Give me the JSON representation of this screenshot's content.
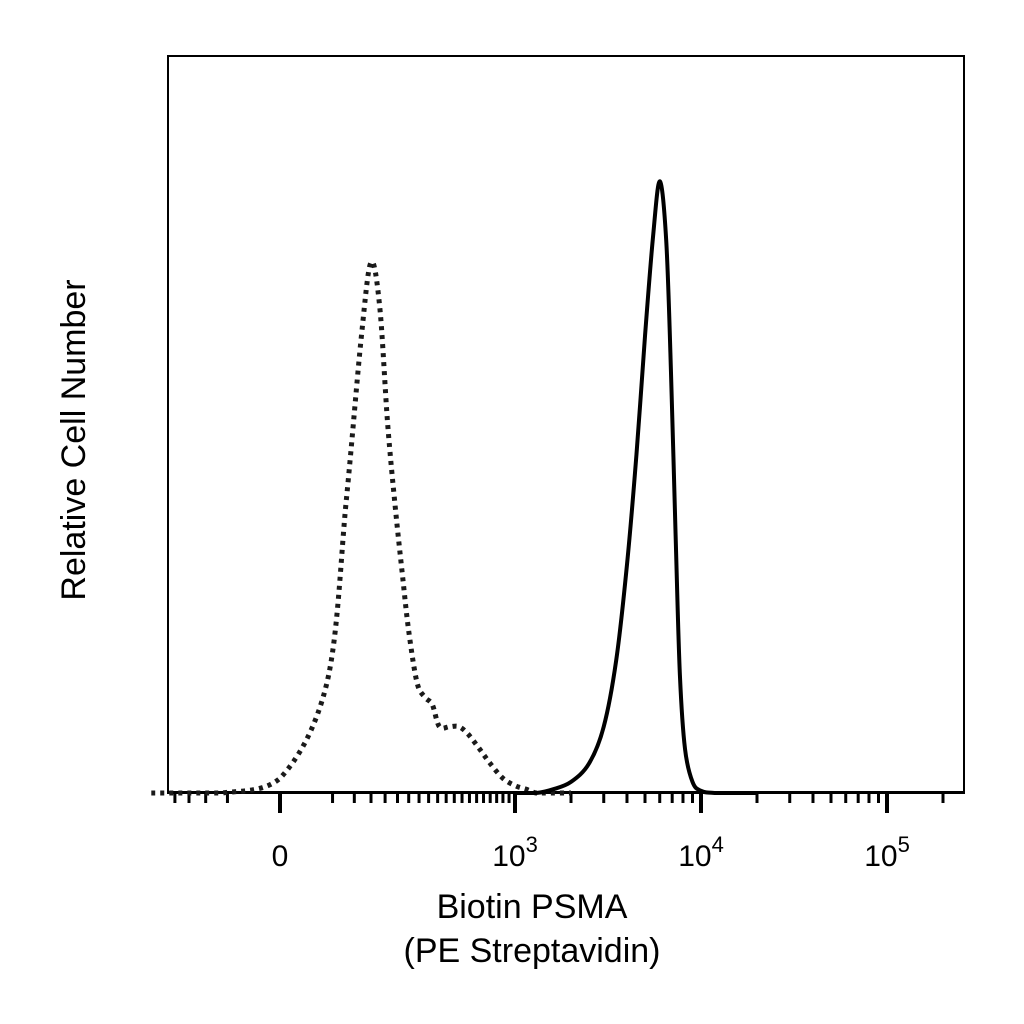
{
  "chart_data": {
    "type": "line",
    "title": "",
    "xlabel_line1": "Biotin PSMA",
    "xlabel_line2": "(PE Streptavidin)",
    "ylabel": "Relative Cell Number",
    "x_scale": "biexponential",
    "xlim": [
      -300,
      200000
    ],
    "ylim": [
      0,
      100
    ],
    "grid": false,
    "legend": "none",
    "x_ticks": [
      {
        "value": 0,
        "label": "0"
      },
      {
        "value": 1000,
        "base": "10",
        "exp": "3"
      },
      {
        "value": 10000,
        "base": "10",
        "exp": "4"
      },
      {
        "value": 100000,
        "base": "10",
        "exp": "5"
      }
    ],
    "series": [
      {
        "style": "dotted",
        "color": "#1a1a1a",
        "x": [
          -300,
          -150,
          -60,
          0,
          40,
          80,
          120,
          150,
          180,
          210,
          240,
          270,
          300,
          340,
          380,
          420,
          460,
          520,
          580,
          640,
          720,
          800,
          900,
          1000,
          1150,
          1300,
          1500,
          2000
        ],
        "y": [
          0,
          0,
          0,
          2,
          15,
          40,
          62,
          72,
          66,
          50,
          39,
          30,
          22,
          15,
          13,
          12,
          9,
          9,
          9,
          8,
          6,
          4,
          2,
          1,
          0.5,
          0,
          0,
          0
        ]
      },
      {
        "style": "solid",
        "color": "#000000",
        "x": [
          1000,
          1300,
          1600,
          2000,
          2500,
          3000,
          3500,
          4000,
          4500,
          5000,
          5500,
          6000,
          6500,
          6900,
          7300,
          7700,
          8200,
          9000,
          10000,
          12000,
          20000
        ],
        "y": [
          0,
          0,
          0.5,
          1.5,
          4,
          9,
          18,
          31,
          46,
          62,
          75,
          83,
          75,
          57,
          35,
          16,
          6,
          1.5,
          0.3,
          0,
          0
        ]
      }
    ]
  }
}
